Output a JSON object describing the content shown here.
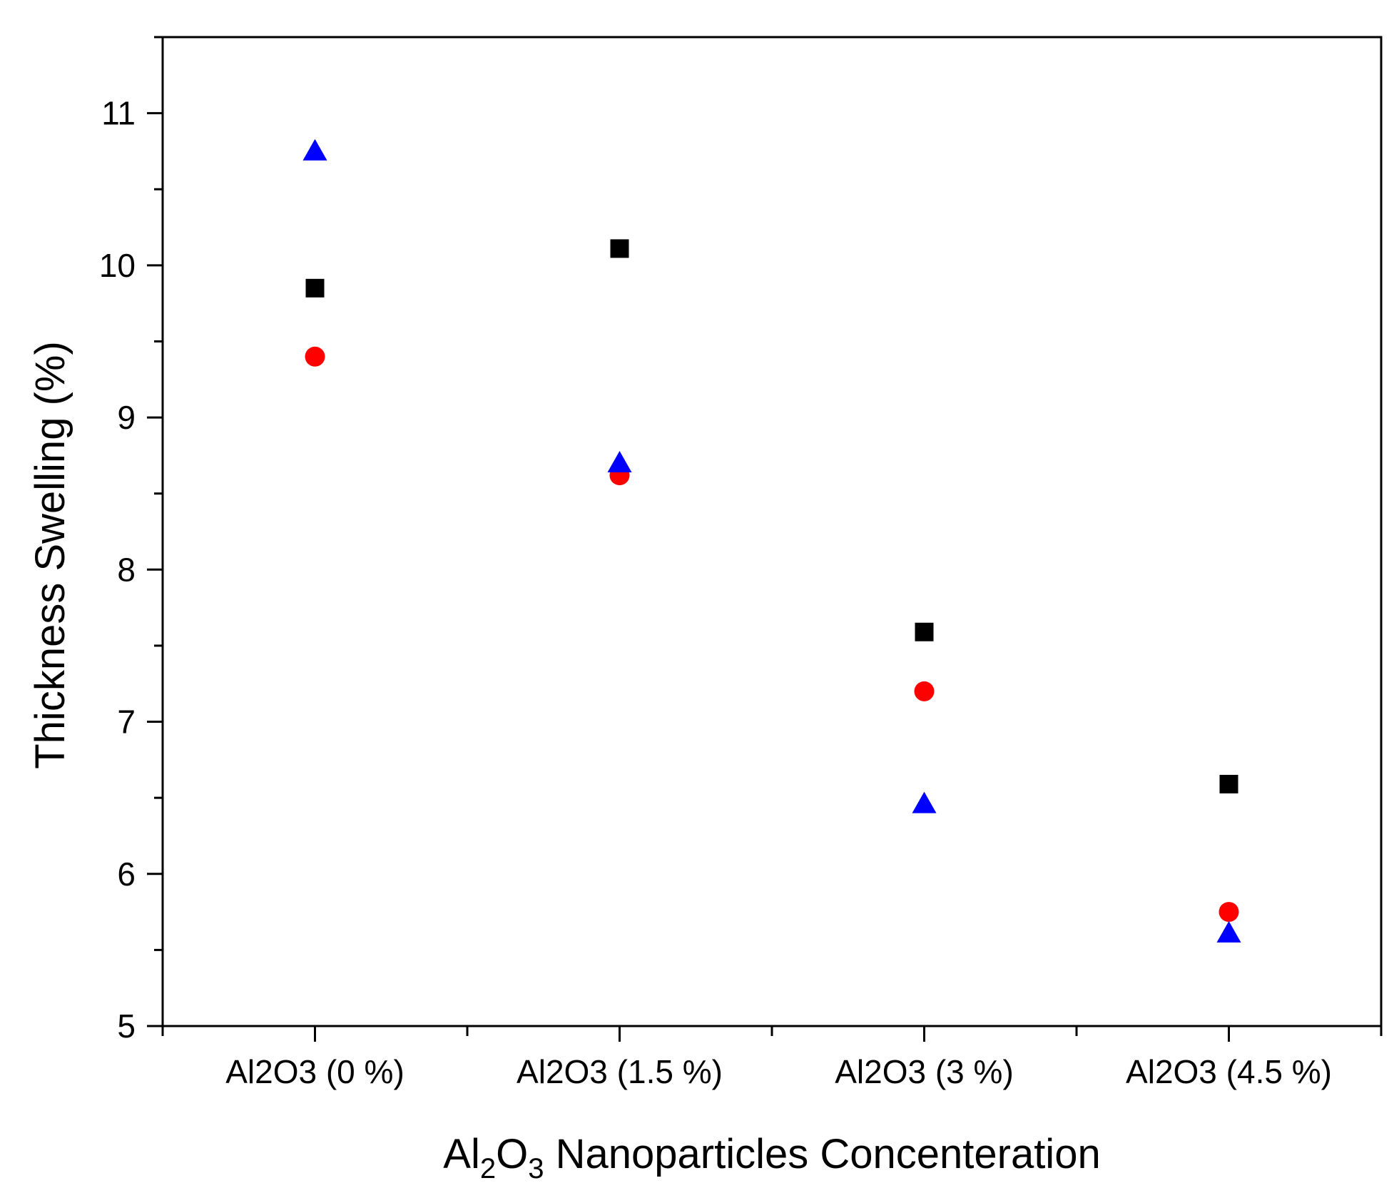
{
  "chart_data": {
    "type": "scatter",
    "title": "",
    "xlabel": "Al2O3 Nanoparticles Concenteration",
    "xlabel_parts": {
      "a": "Al",
      "sub1": "2",
      "b": "O",
      "sub2": "3",
      "rest": " Nanoparticles Concenteration"
    },
    "ylabel": "Thickness Swelling (%)",
    "categories": [
      "Al2O3 (0 %)",
      "Al2O3 (1.5 %)",
      "Al2O3 (3 %)",
      "Al2O3 (4.5 %)"
    ],
    "ylim": [
      5,
      11.5
    ],
    "yticks": [
      5,
      6,
      7,
      8,
      9,
      10,
      11
    ],
    "grid": false,
    "legend": "none",
    "series": [
      {
        "name": "series-square",
        "marker": "square",
        "color": "#000000",
        "values": [
          9.85,
          10.11,
          7.59,
          6.59
        ]
      },
      {
        "name": "series-circle",
        "marker": "circle",
        "color": "#ff0000",
        "values": [
          9.4,
          8.62,
          7.2,
          5.75
        ]
      },
      {
        "name": "series-triangle",
        "marker": "triangle",
        "color": "#0000ff",
        "values": [
          10.75,
          8.7,
          6.46,
          5.61
        ]
      }
    ]
  }
}
